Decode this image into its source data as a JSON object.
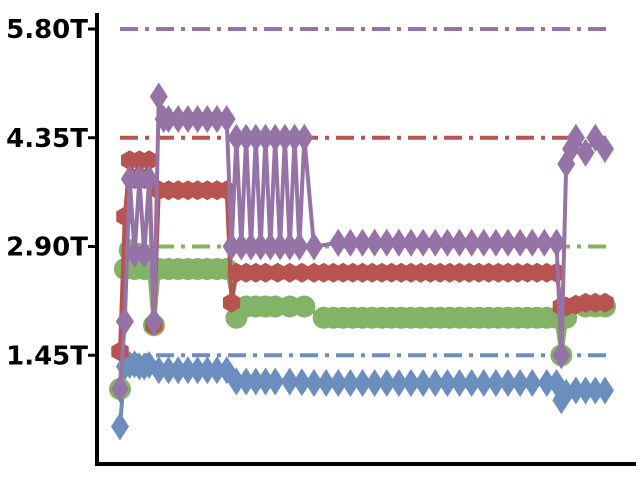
{
  "chart_data": {
    "type": "line",
    "title": "",
    "xlabel": "",
    "ylabel": "",
    "ylim": [
      0,
      6
    ],
    "xlim": [
      0,
      100
    ],
    "grid": false,
    "legend": "none",
    "yticks": [
      {
        "value": 1.45,
        "label": "1.45T"
      },
      {
        "value": 2.9,
        "label": "2.90T"
      },
      {
        "value": 4.35,
        "label": "4.35T"
      },
      {
        "value": 5.8,
        "label": "5.80T"
      }
    ],
    "reference_lines": [
      {
        "value": 1.45,
        "color": "#6c8ebf"
      },
      {
        "value": 2.9,
        "color": "#82b366"
      },
      {
        "value": 4.35,
        "color": "#b85450"
      },
      {
        "value": 5.8,
        "color": "#9673a6"
      }
    ],
    "series": [
      {
        "color": "#6c8ebf",
        "marker": "diamond",
        "points": [
          [
            0,
            0.5
          ],
          [
            1,
            1.3
          ],
          [
            2,
            1.32
          ],
          [
            3,
            1.33
          ],
          [
            4,
            1.3
          ],
          [
            5,
            1.3
          ],
          [
            6,
            1.32
          ],
          [
            8,
            1.25
          ],
          [
            10,
            1.25
          ],
          [
            12,
            1.25
          ],
          [
            14,
            1.25
          ],
          [
            16,
            1.25
          ],
          [
            18,
            1.25
          ],
          [
            20,
            1.25
          ],
          [
            22,
            1.25
          ],
          [
            24,
            1.1
          ],
          [
            26,
            1.1
          ],
          [
            28,
            1.1
          ],
          [
            30,
            1.1
          ],
          [
            32,
            1.1
          ],
          [
            35,
            1.1
          ],
          [
            40,
            1.08
          ],
          [
            45,
            1.08
          ],
          [
            50,
            1.08
          ],
          [
            55,
            1.08
          ],
          [
            60,
            1.08
          ],
          [
            65,
            1.08
          ],
          [
            70,
            1.08
          ],
          [
            75,
            1.08
          ],
          [
            80,
            1.08
          ],
          [
            85,
            1.08
          ],
          [
            88,
            1.08
          ],
          [
            90,
            1.08
          ],
          [
            91,
            0.85
          ],
          [
            92,
            0.95
          ],
          [
            94,
            0.98
          ],
          [
            96,
            0.98
          ],
          [
            98,
            0.98
          ],
          [
            100,
            0.98
          ]
        ]
      },
      {
        "color": "#82b366",
        "marker": "circle",
        "points": [
          [
            0,
            1.0
          ],
          [
            1,
            2.6
          ],
          [
            2,
            2.85
          ],
          [
            3,
            2.6
          ],
          [
            4,
            2.8
          ],
          [
            5,
            2.6
          ],
          [
            6,
            2.6
          ],
          [
            7,
            1.85
          ],
          [
            8,
            2.6
          ],
          [
            10,
            2.6
          ],
          [
            12,
            2.6
          ],
          [
            14,
            2.6
          ],
          [
            16,
            2.6
          ],
          [
            18,
            2.6
          ],
          [
            20,
            2.6
          ],
          [
            22,
            2.6
          ],
          [
            24,
            1.95
          ],
          [
            26,
            2.1
          ],
          [
            28,
            2.1
          ],
          [
            30,
            2.1
          ],
          [
            32,
            2.1
          ],
          [
            35,
            2.1
          ],
          [
            38,
            2.1
          ],
          [
            42,
            1.95
          ],
          [
            50,
            1.95
          ],
          [
            60,
            1.95
          ],
          [
            70,
            1.95
          ],
          [
            80,
            1.95
          ],
          [
            90,
            1.95
          ],
          [
            91,
            1.45
          ],
          [
            92,
            1.95
          ],
          [
            96,
            2.1
          ],
          [
            100,
            2.1
          ]
        ]
      },
      {
        "color": "#b85450",
        "marker": "hexagon",
        "points": [
          [
            0,
            1.5
          ],
          [
            1,
            3.3
          ],
          [
            2,
            4.05
          ],
          [
            3,
            3.8
          ],
          [
            4,
            4.05
          ],
          [
            5,
            3.8
          ],
          [
            6,
            4.05
          ],
          [
            7,
            1.85
          ],
          [
            8,
            3.65
          ],
          [
            10,
            3.65
          ],
          [
            12,
            3.65
          ],
          [
            14,
            3.65
          ],
          [
            16,
            3.65
          ],
          [
            18,
            3.65
          ],
          [
            20,
            3.65
          ],
          [
            22,
            3.65
          ],
          [
            23,
            2.15
          ],
          [
            24,
            2.55
          ],
          [
            26,
            2.55
          ],
          [
            28,
            2.55
          ],
          [
            30,
            2.55
          ],
          [
            35,
            2.55
          ],
          [
            40,
            2.55
          ],
          [
            50,
            2.55
          ],
          [
            60,
            2.55
          ],
          [
            70,
            2.55
          ],
          [
            80,
            2.55
          ],
          [
            90,
            2.55
          ],
          [
            91,
            2.1
          ],
          [
            92,
            2.1
          ],
          [
            96,
            2.15
          ],
          [
            100,
            2.15
          ]
        ]
      },
      {
        "color": "#9673a6",
        "marker": "diamond",
        "points": [
          [
            0,
            1.0
          ],
          [
            1,
            1.9
          ],
          [
            2,
            3.8
          ],
          [
            3,
            2.8
          ],
          [
            4,
            3.8
          ],
          [
            5,
            2.8
          ],
          [
            6,
            3.8
          ],
          [
            7,
            1.9
          ],
          [
            8,
            4.9
          ],
          [
            9,
            4.6
          ],
          [
            10,
            4.6
          ],
          [
            12,
            4.6
          ],
          [
            14,
            4.6
          ],
          [
            16,
            4.6
          ],
          [
            18,
            4.6
          ],
          [
            20,
            4.6
          ],
          [
            22,
            4.6
          ],
          [
            23,
            2.9
          ],
          [
            24,
            4.35
          ],
          [
            25,
            2.9
          ],
          [
            26,
            4.35
          ],
          [
            27,
            2.9
          ],
          [
            28,
            4.35
          ],
          [
            29,
            2.9
          ],
          [
            30,
            4.35
          ],
          [
            31,
            2.9
          ],
          [
            32,
            4.35
          ],
          [
            33,
            2.9
          ],
          [
            34,
            4.35
          ],
          [
            35,
            2.9
          ],
          [
            36,
            4.35
          ],
          [
            37,
            2.9
          ],
          [
            38,
            4.35
          ],
          [
            40,
            2.9
          ],
          [
            45,
            2.95
          ],
          [
            50,
            2.95
          ],
          [
            55,
            2.95
          ],
          [
            60,
            2.95
          ],
          [
            65,
            2.95
          ],
          [
            70,
            2.95
          ],
          [
            75,
            2.95
          ],
          [
            80,
            2.95
          ],
          [
            85,
            2.95
          ],
          [
            90,
            2.95
          ],
          [
            91,
            1.45
          ],
          [
            92,
            4.0
          ],
          [
            93,
            4.2
          ],
          [
            94,
            4.35
          ],
          [
            96,
            4.15
          ],
          [
            98,
            4.35
          ],
          [
            100,
            4.2
          ]
        ]
      }
    ]
  }
}
